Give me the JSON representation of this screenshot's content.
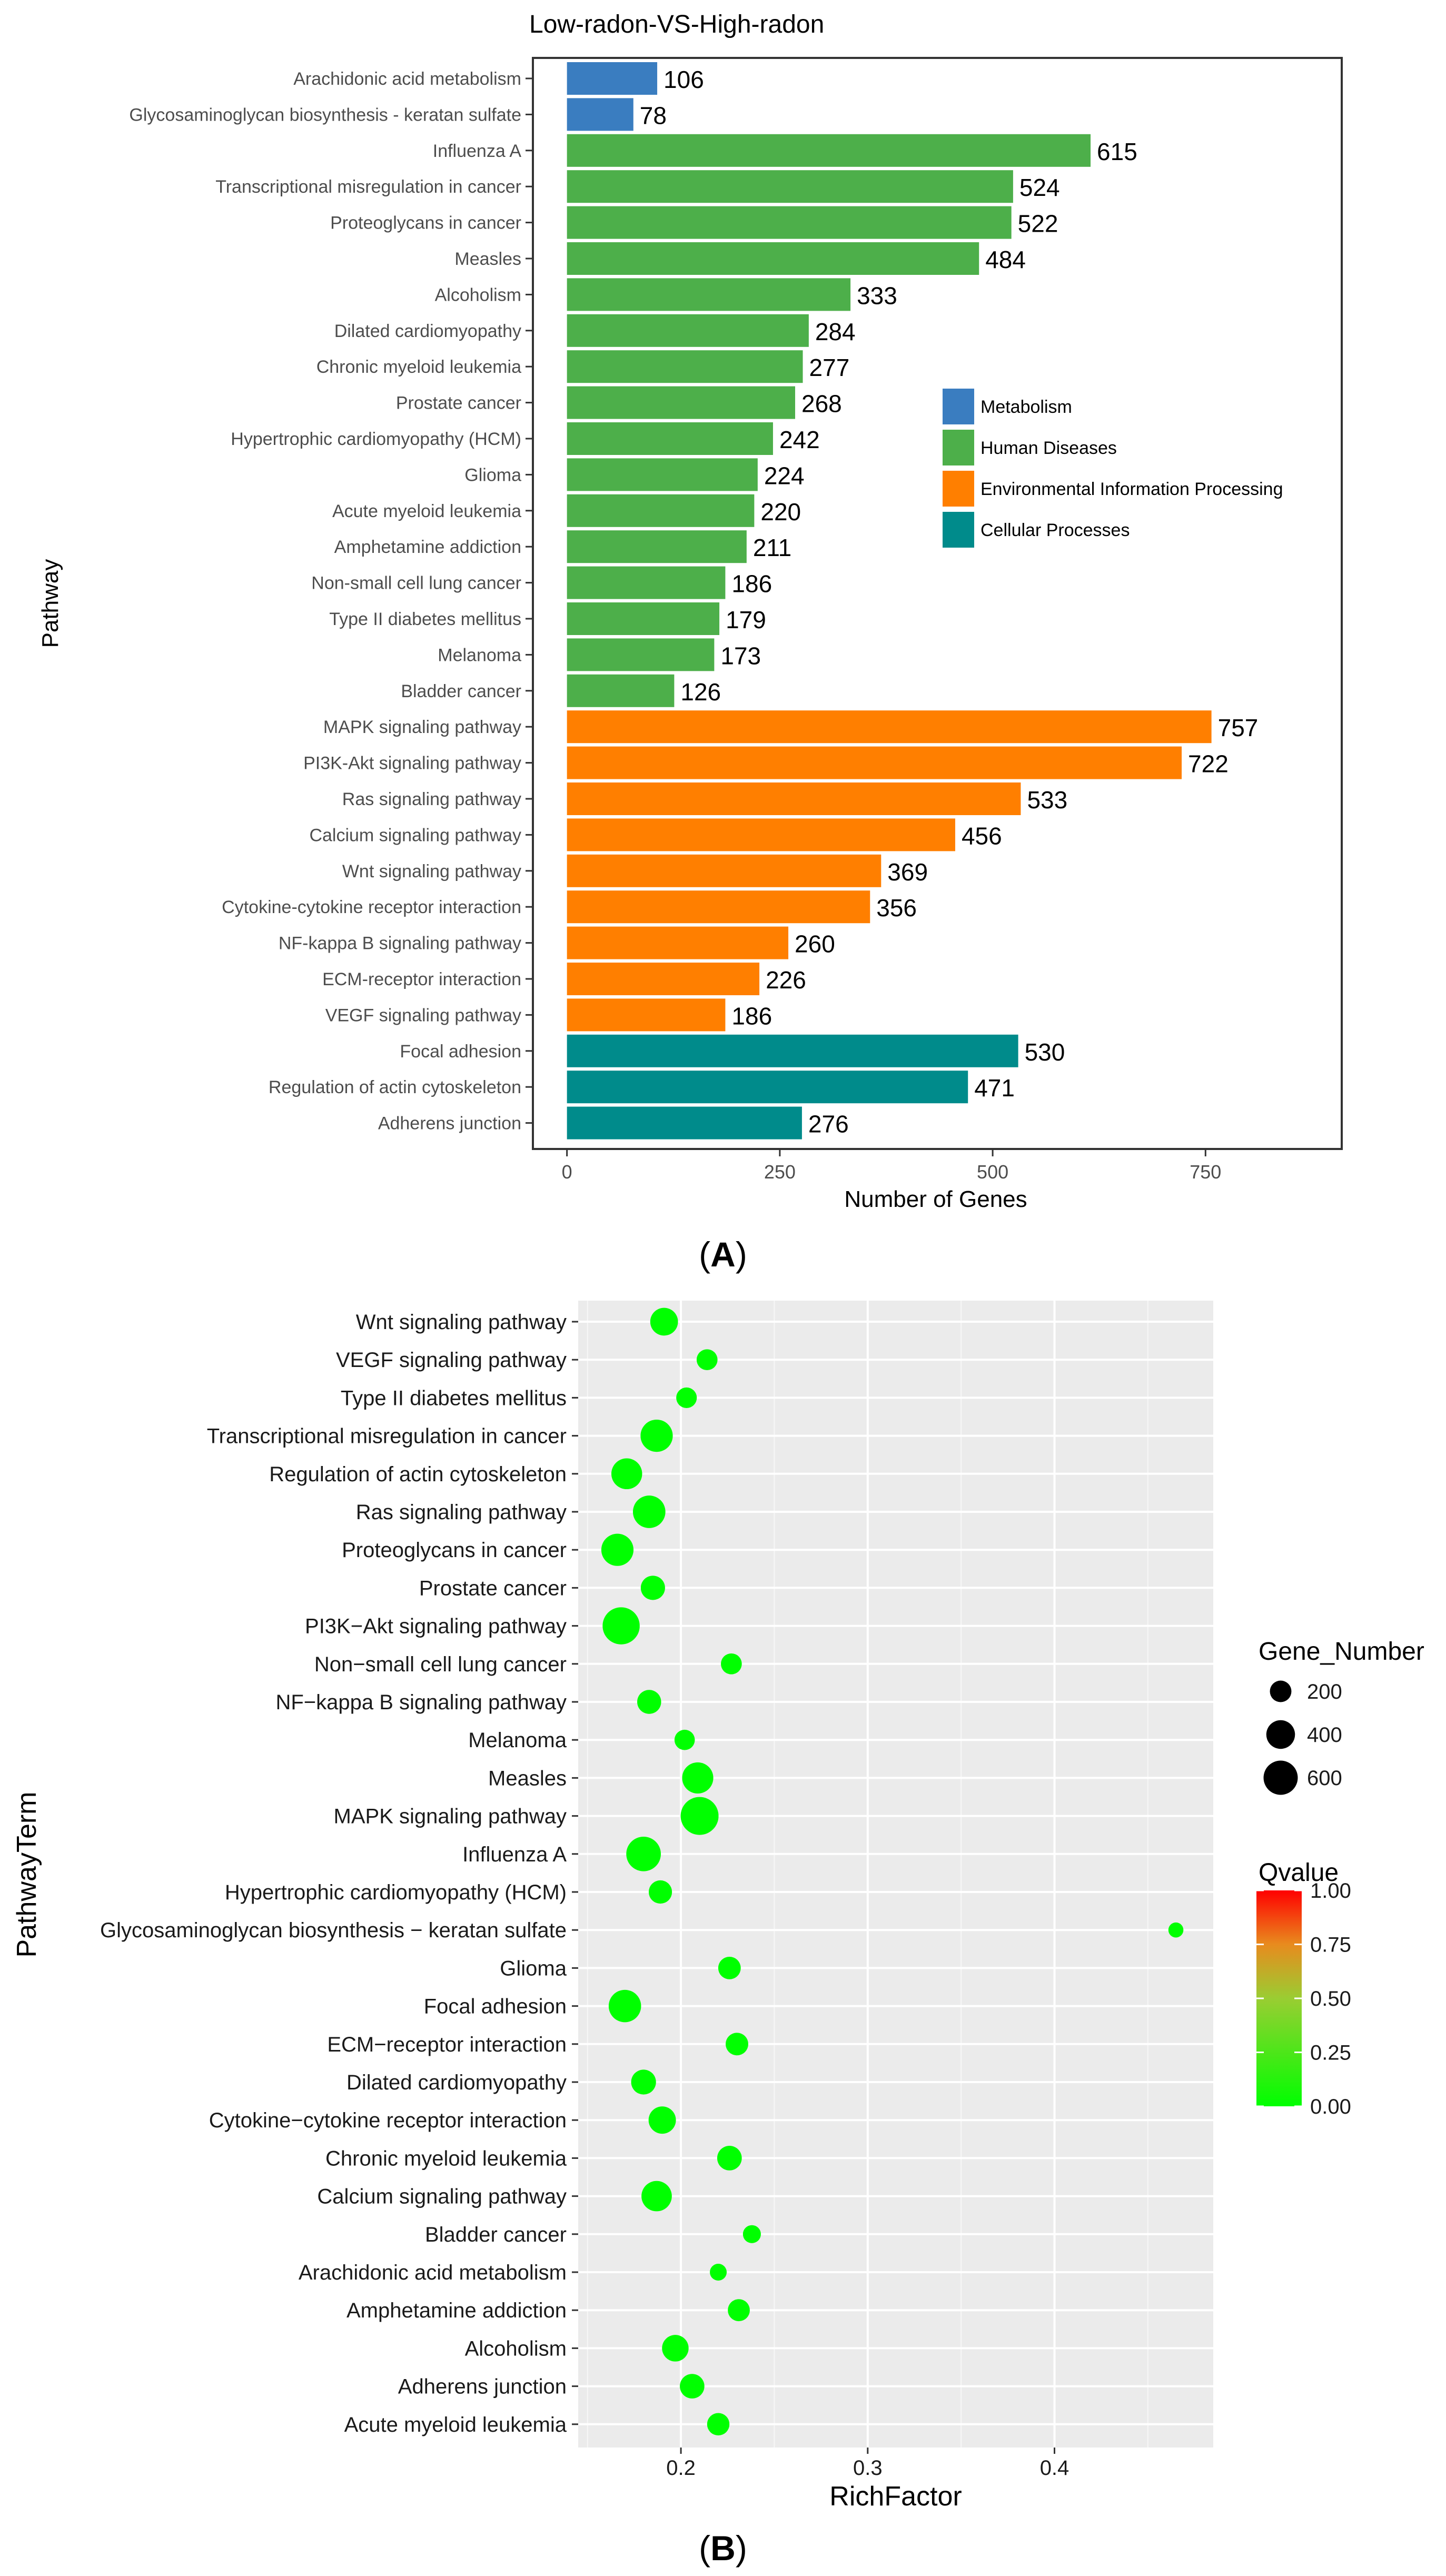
{
  "panel_a": {
    "title": "Low-radon-VS-High-radon",
    "xlabel": "Number of Genes",
    "ylabel": "Pathway",
    "caption_letter": "A",
    "caption_open": "(",
    "caption_close": ")"
  },
  "panel_b": {
    "xlabel": "RichFactor",
    "ylabel": "PathwayTerm",
    "size_legend_title": "Gene_Number",
    "color_legend_title": "Qvalue",
    "caption_letter": "B",
    "caption_open": "(",
    "caption_close": ")"
  },
  "chart_data": [
    {
      "type": "bar",
      "orientation": "horizontal",
      "title": "Low-radon-VS-High-radon",
      "xlabel": "Number of Genes",
      "ylabel": "Pathway",
      "xlim": [
        0,
        900
      ],
      "xticks": [
        0,
        250,
        500,
        750
      ],
      "xtick_labels": [
        "0",
        "250",
        "500",
        "750"
      ],
      "grid": false,
      "legend_position": "center-right",
      "legend": [
        {
          "name": "Metabolism",
          "color": "#3A7DC0"
        },
        {
          "name": "Human Diseases",
          "color": "#4DAF4A"
        },
        {
          "name": "Environmental Information Processing",
          "color": "#FF7F00"
        },
        {
          "name": "Cellular Processes",
          "color": "#008B8B"
        }
      ],
      "categories": [
        "Arachidonic acid metabolism",
        "Glycosaminoglycan biosynthesis - keratan sulfate",
        "Influenza A",
        "Transcriptional misregulation in cancer",
        "Proteoglycans in cancer",
        "Measles",
        "Alcoholism",
        "Dilated cardiomyopathy",
        "Chronic myeloid leukemia",
        "Prostate cancer",
        "Hypertrophic cardiomyopathy (HCM)",
        "Glioma",
        "Acute myeloid leukemia",
        "Amphetamine addiction",
        "Non-small cell lung cancer",
        "Type II diabetes mellitus",
        "Melanoma",
        "Bladder cancer",
        "MAPK signaling pathway",
        "PI3K-Akt signaling pathway",
        "Ras signaling pathway",
        "Calcium signaling pathway",
        "Wnt signaling pathway",
        "Cytokine-cytokine receptor interaction",
        "NF-kappa B signaling pathway",
        "ECM-receptor interaction",
        "VEGF signaling pathway",
        "Focal adhesion",
        "Regulation of actin cytoskeleton",
        "Adherens junction"
      ],
      "values": [
        106,
        78,
        615,
        524,
        522,
        484,
        333,
        284,
        277,
        268,
        242,
        224,
        220,
        211,
        186,
        179,
        173,
        126,
        757,
        722,
        533,
        456,
        369,
        356,
        260,
        226,
        186,
        530,
        471,
        276
      ],
      "groups": [
        0,
        0,
        1,
        1,
        1,
        1,
        1,
        1,
        1,
        1,
        1,
        1,
        1,
        1,
        1,
        1,
        1,
        1,
        2,
        2,
        2,
        2,
        2,
        2,
        2,
        2,
        2,
        3,
        3,
        3
      ]
    },
    {
      "type": "scatter",
      "subtype": "bubble",
      "xlabel": "RichFactor",
      "ylabel": "PathwayTerm",
      "xlim": [
        0.145,
        0.485
      ],
      "xticks": [
        0.2,
        0.3,
        0.4
      ],
      "xtick_labels": [
        "0.2",
        "0.3",
        "0.4"
      ],
      "grid": true,
      "categories": [
        "Wnt signaling pathway",
        "VEGF signaling pathway",
        "Type II diabetes mellitus",
        "Transcriptional misregulation in cancer",
        "Regulation of actin cytoskeleton",
        "Ras signaling pathway",
        "Proteoglycans in cancer",
        "Prostate cancer",
        "PI3K−Akt signaling pathway",
        "Non−small cell lung cancer",
        "NF−kappa B signaling pathway",
        "Melanoma",
        "Measles",
        "MAPK signaling pathway",
        "Influenza A",
        "Hypertrophic cardiomyopathy (HCM)",
        "Glycosaminoglycan biosynthesis − keratan sulfate",
        "Glioma",
        "Focal adhesion",
        "ECM−receptor interaction",
        "Dilated cardiomyopathy",
        "Cytokine−cytokine receptor interaction",
        "Chronic myeloid leukemia",
        "Calcium signaling pathway",
        "Bladder cancer",
        "Arachidonic acid metabolism",
        "Amphetamine addiction",
        "Alcoholism",
        "Adherens junction",
        "Acute myeloid leukemia"
      ],
      "x": [
        0.191,
        0.214,
        0.203,
        0.187,
        0.171,
        0.183,
        0.166,
        0.185,
        0.168,
        0.227,
        0.183,
        0.202,
        0.209,
        0.21,
        0.18,
        0.189,
        0.465,
        0.226,
        0.17,
        0.23,
        0.18,
        0.19,
        0.226,
        0.187,
        0.238,
        0.22,
        0.231,
        0.197,
        0.206,
        0.22
      ],
      "gene_number": [
        369,
        186,
        179,
        524,
        471,
        533,
        522,
        268,
        722,
        186,
        260,
        173,
        484,
        757,
        615,
        242,
        78,
        224,
        530,
        226,
        284,
        356,
        277,
        456,
        126,
        106,
        211,
        333,
        276,
        220
      ],
      "qvalue": [
        0,
        0,
        0,
        0,
        0,
        0,
        0,
        0,
        0,
        0,
        0,
        0,
        0,
        0,
        0,
        0,
        0,
        0,
        0,
        0,
        0,
        0,
        0,
        0,
        0,
        0,
        0,
        0,
        0,
        0
      ],
      "size_legend": {
        "title": "Gene_Number",
        "values": [
          200,
          400,
          600
        ],
        "labels": [
          "200",
          "400",
          "600"
        ]
      },
      "color_legend": {
        "title": "Qvalue",
        "range": [
          0,
          1
        ],
        "ticks": [
          0,
          0.25,
          0.5,
          0.75,
          1
        ],
        "tick_labels": [
          "0.00",
          "0.25",
          "0.50",
          "0.75",
          "1.00"
        ],
        "low_color": "#00FF00",
        "high_color": "#FF0000"
      }
    }
  ]
}
